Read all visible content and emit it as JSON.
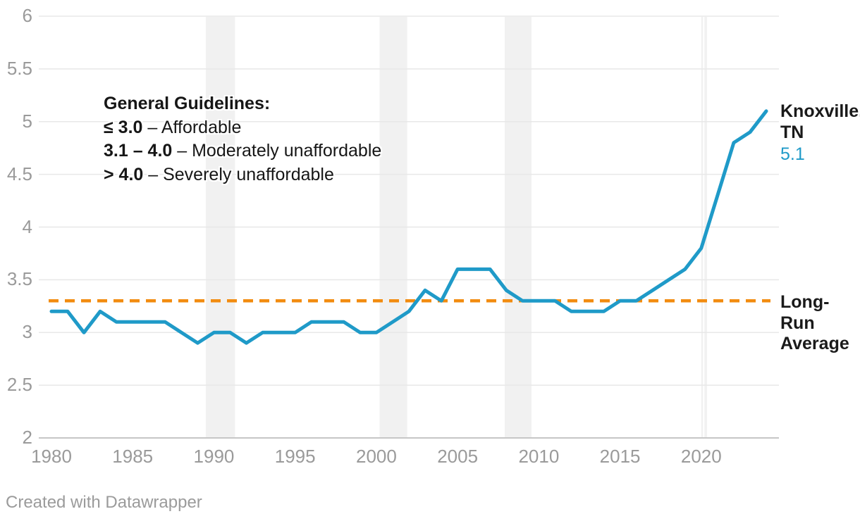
{
  "chart_data": {
    "type": "line",
    "title": "",
    "x": [
      1980,
      1981,
      1982,
      1983,
      1984,
      1985,
      1986,
      1987,
      1988,
      1989,
      1990,
      1991,
      1992,
      1993,
      1994,
      1995,
      1996,
      1997,
      1998,
      1999,
      2000,
      2001,
      2002,
      2003,
      2004,
      2005,
      2006,
      2007,
      2008,
      2009,
      2010,
      2011,
      2012,
      2013,
      2014,
      2015,
      2016,
      2017,
      2018,
      2019,
      2020,
      2021,
      2022,
      2023,
      2024
    ],
    "series": [
      {
        "name": "Knoxville, TN",
        "values": [
          3.2,
          3.2,
          3.0,
          3.2,
          3.1,
          3.1,
          3.1,
          3.1,
          3.0,
          2.9,
          3.0,
          3.0,
          2.9,
          3.0,
          3.0,
          3.0,
          3.1,
          3.1,
          3.1,
          3.0,
          3.0,
          3.1,
          3.2,
          3.4,
          3.3,
          3.6,
          3.6,
          3.6,
          3.4,
          3.3,
          3.3,
          3.3,
          3.2,
          3.2,
          3.2,
          3.3,
          3.3,
          3.4,
          3.5,
          3.6,
          3.8,
          4.3,
          4.8,
          4.9,
          5.1
        ]
      }
    ],
    "xlabel": "",
    "ylabel": "",
    "ylim": [
      2,
      6
    ],
    "yticks": [
      2,
      2.5,
      3,
      3.5,
      4,
      4.5,
      5,
      5.5,
      6
    ],
    "xticks": [
      1980,
      1985,
      1990,
      1995,
      2000,
      2005,
      2010,
      2015,
      2020
    ],
    "grid": "horizontal",
    "legend_position": "end-of-line-label",
    "reference_line": {
      "value": 3.3,
      "label": "Long-Run Average",
      "style": "dashed"
    },
    "shaded_spans": [
      [
        1989.5,
        1991.3
      ],
      [
        2000.2,
        2001.9
      ],
      [
        2007.9,
        2009.55
      ],
      [
        2020.0,
        2020.35
      ]
    ],
    "band_dividers": [
      2020.15
    ]
  },
  "annotation": {
    "title": "General Guidelines:",
    "lines": [
      {
        "bold": "≤ 3.0",
        "rest": " – Affordable"
      },
      {
        "bold": "3.1 – 4.0",
        "rest": " – Moderately unaffordable"
      },
      {
        "bold": "> 4.0",
        "rest": " – Severely unaffordable"
      }
    ]
  },
  "series_label": {
    "name": "Knoxville, TN",
    "value": "5.1"
  },
  "reference_label": "Long-Run Average",
  "footer": "Created with Datawrapper",
  "colors": {
    "line": "#1f9ac8",
    "value_text": "#1f9ac8",
    "reference": "#f28c10",
    "band": "#f1f1f1",
    "grid": "#e8e8e8",
    "axis": "#c6c6c6",
    "tick_text": "#9a9a9a",
    "label_text": "#1a1a1a"
  }
}
